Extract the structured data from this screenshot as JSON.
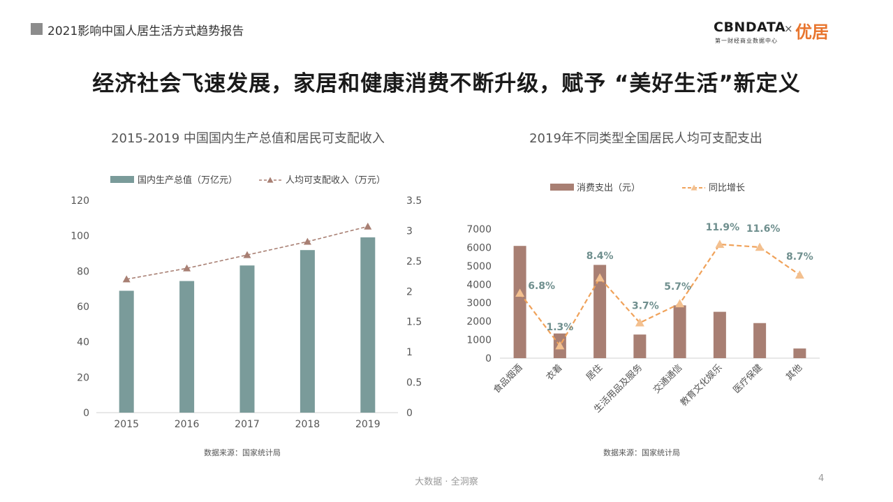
{
  "header": {
    "title": "2021影响中国人居生活方式趋势报告"
  },
  "logo": {
    "brand": "CBNDATA",
    "times": "×",
    "partner": "优居",
    "sub": "第一财经商业数据中心"
  },
  "main_title": "经济社会飞速发展，家居和健康消费不断升级，赋予 “美好生活”新定义",
  "left_chart": {
    "source": "数据来源：国家统计局"
  },
  "right_chart": {
    "source": "数据来源：国家统计局"
  },
  "footer": {
    "text": "大数据 · 全洞察",
    "page": "4"
  },
  "colors": {
    "teal": "#7a9b9a",
    "brown": "#a87f73",
    "brown_line": "#a87f73",
    "orange": "#f0a25a",
    "marker": "#f3c08f",
    "label": "#6f8f8e"
  },
  "chart_data": [
    {
      "type": "bar",
      "title": "2015-2019 中国国内生产总值和居民可支配收入",
      "categories": [
        "2015",
        "2016",
        "2017",
        "2018",
        "2019"
      ],
      "series": [
        {
          "name": "国内生产总值（万亿元）",
          "type": "bar",
          "axis": "left",
          "values": [
            68.9,
            74.4,
            83.2,
            91.9,
            99.1
          ]
        },
        {
          "name": "人均可支配收入（万元）",
          "type": "line",
          "axis": "right",
          "values": [
            2.2,
            2.38,
            2.6,
            2.82,
            3.07
          ]
        }
      ],
      "y_left": {
        "range": [
          0,
          120
        ],
        "ticks": [
          "0",
          "20",
          "40",
          "60",
          "80",
          "100",
          "120"
        ]
      },
      "y_right": {
        "range": [
          0,
          3.5
        ],
        "ticks": [
          "0",
          "0.5",
          "1",
          "1.5",
          "2",
          "2.5",
          "3",
          "3.5"
        ]
      },
      "legend": "top",
      "grid": false
    },
    {
      "type": "bar",
      "title": "2019年不同类型全国居民人均可支配支出",
      "categories": [
        "食品烟酒",
        "衣着",
        "居住",
        "生活用品及服务",
        "交通通信",
        "教育文化娱乐",
        "医疗保健",
        "其他"
      ],
      "series": [
        {
          "name": "消费支出（元）",
          "type": "bar",
          "axis": "left",
          "values": [
            6084,
            1338,
            5055,
            1281,
            2862,
            2513,
            1902,
            524
          ]
        },
        {
          "name": "同比增长",
          "type": "line",
          "axis": "right",
          "values": [
            6.8,
            1.3,
            8.4,
            3.7,
            5.7,
            11.9,
            11.6,
            8.7
          ],
          "labels": [
            "6.8%",
            "1.3%",
            "8.4%",
            "3.7%",
            "5.7%",
            "11.9%",
            "11.6%",
            "8.7%"
          ]
        }
      ],
      "y_left": {
        "range": [
          0,
          7000
        ],
        "ticks": [
          "0",
          "1000",
          "2000",
          "3000",
          "4000",
          "5000",
          "6000",
          "7000"
        ]
      },
      "legend": "top",
      "grid": false
    }
  ]
}
